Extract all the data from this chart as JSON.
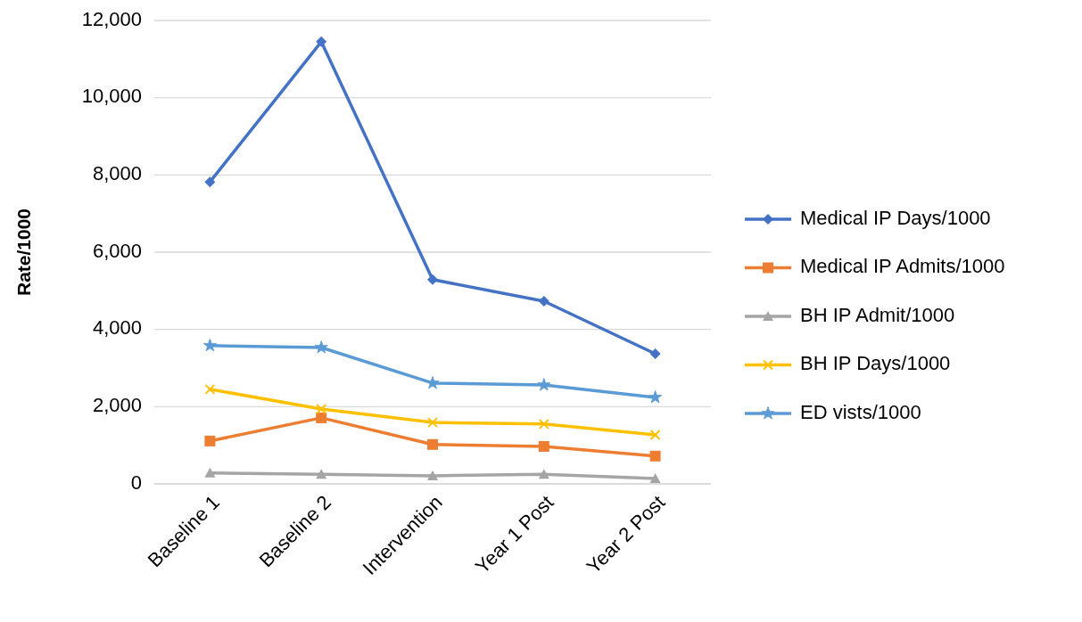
{
  "chart_data": {
    "type": "line",
    "ylabel": "Rate/1000",
    "categories": [
      "Baseline 1",
      "Baseline 2",
      "Intervention",
      "Year 1 Post",
      "Year 2 Post"
    ],
    "series": [
      {
        "name": "Medical IP Days/1000",
        "color": "#4472c4",
        "marker": "diamond",
        "values": [
          7820,
          11450,
          5290,
          4730,
          3370
        ]
      },
      {
        "name": "Medical IP Admits/1000",
        "color": "#ed7d31",
        "marker": "square",
        "values": [
          1110,
          1710,
          1020,
          970,
          720
        ]
      },
      {
        "name": "BH IP Admit/1000",
        "color": "#a5a5a5",
        "marker": "triangle",
        "values": [
          280,
          250,
          210,
          250,
          140
        ]
      },
      {
        "name": "BH IP Days/1000",
        "color": "#ffc000",
        "marker": "cross",
        "values": [
          2450,
          1940,
          1590,
          1550,
          1270
        ]
      },
      {
        "name": "ED vists/1000",
        "color": "#5b9bd5",
        "marker": "star",
        "values": [
          3580,
          3530,
          2610,
          2560,
          2240
        ]
      }
    ],
    "ylim": [
      0,
      12000
    ],
    "yticks": [
      {
        "value": 0,
        "label": "0"
      },
      {
        "value": 2000,
        "label": "2,000"
      },
      {
        "value": 4000,
        "label": "4,000"
      },
      {
        "value": 6000,
        "label": "6,000"
      },
      {
        "value": 8000,
        "label": "8,000"
      },
      {
        "value": 10000,
        "label": "10,000"
      },
      {
        "value": 12000,
        "label": "12,000"
      }
    ],
    "grid": "y",
    "legend": "right"
  }
}
